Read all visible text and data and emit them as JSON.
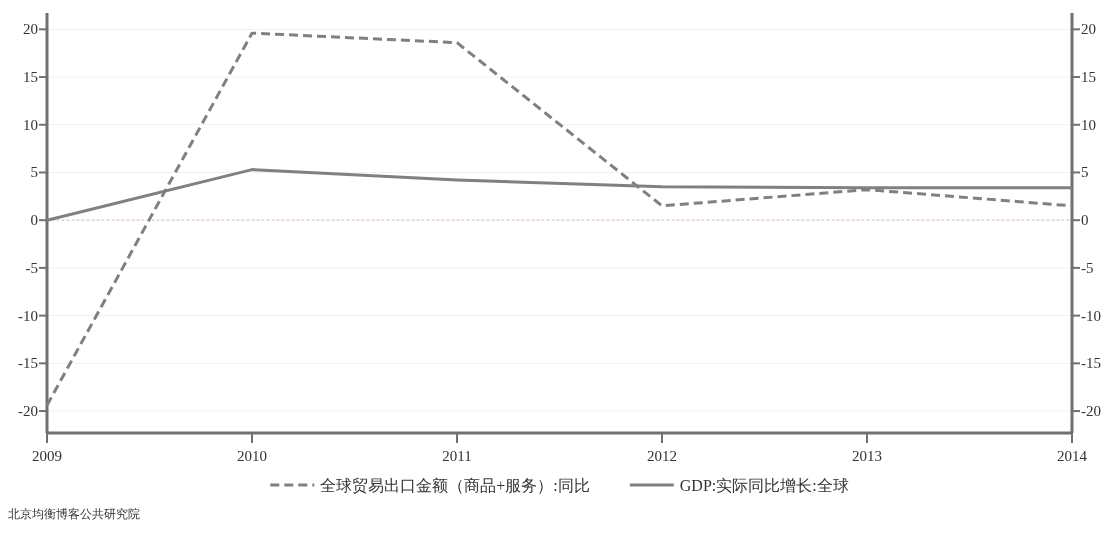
{
  "chart_data": {
    "type": "line",
    "x": [
      2009,
      2010,
      2011,
      2012,
      2013,
      2014
    ],
    "series": [
      {
        "name": "全球贸易出口金额（商品+服务）:同比",
        "color": "#808080",
        "line_style": "dashed",
        "values": [
          -19.4,
          19.6,
          18.6,
          1.5,
          3.2,
          1.5
        ]
      },
      {
        "name": "GDP:实际同比增长:全球",
        "color": "#808080",
        "line_style": "solid",
        "values": [
          0,
          5.3,
          4.2,
          3.5,
          3.4,
          3.4
        ]
      }
    ],
    "xlim": [
      2009,
      2014
    ],
    "xticks": [
      2009,
      2010,
      2011,
      2012,
      2013,
      2014
    ],
    "ylim": [
      -22.3,
      21.5
    ],
    "yticks": [
      -20,
      -15,
      -10,
      -5,
      0,
      5,
      10,
      15,
      20
    ],
    "y2lim": [
      -22.3,
      21.5
    ],
    "y2ticks": [
      -20,
      -15,
      -10,
      -5,
      0,
      5,
      10,
      15,
      20
    ],
    "grid": "y",
    "legend": "bottom",
    "ref_lines": [
      {
        "axis": "y",
        "value": 0,
        "color": "#e0c0c0",
        "line_style": "dotted"
      }
    ],
    "annotations": [
      "北京均衡博客公共研究院"
    ]
  }
}
